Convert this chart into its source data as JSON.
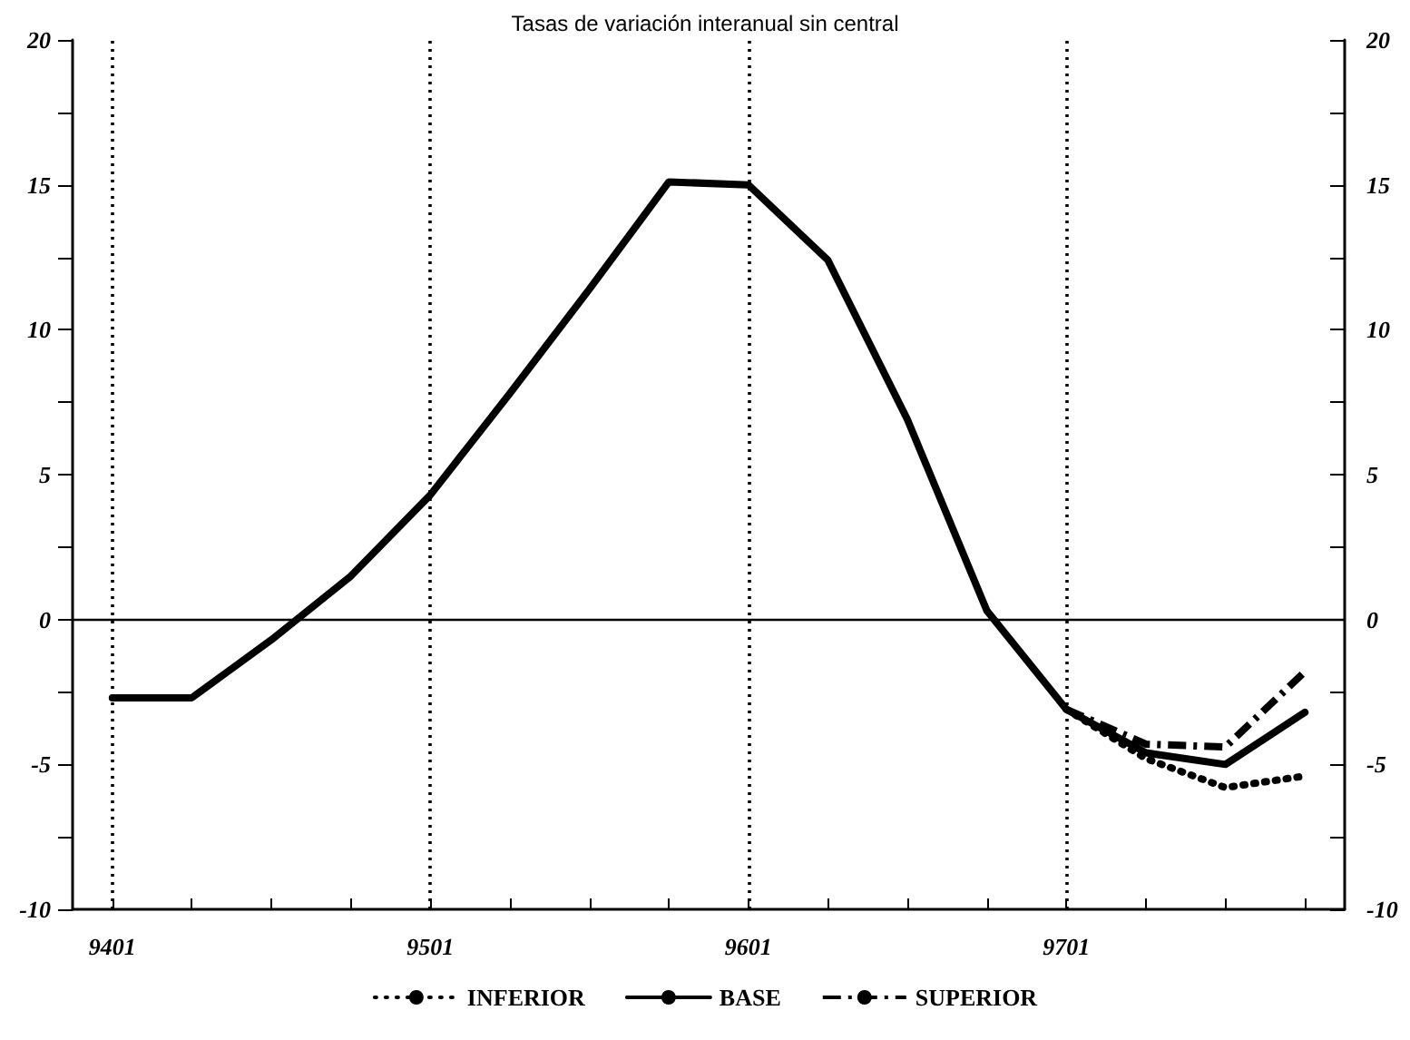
{
  "chart_data": {
    "type": "line",
    "title": "Tasas de variación interanual sin central",
    "categories": [
      "9401",
      null,
      null,
      null,
      "9501",
      null,
      null,
      null,
      "9601",
      null,
      null,
      null,
      "9701",
      null,
      null,
      null
    ],
    "series": [
      {
        "name": "INFERIOR",
        "color": "#000000",
        "line_style": "dotted",
        "values": [
          null,
          null,
          null,
          null,
          null,
          null,
          null,
          null,
          null,
          null,
          null,
          null,
          -3.1,
          -4.8,
          -5.8,
          -5.4
        ]
      },
      {
        "name": "BASE",
        "color": "#000000",
        "line_style": "solid",
        "values": [
          -2.7,
          -2.7,
          -0.7,
          1.5,
          4.3,
          7.8,
          11.4,
          15.1,
          15.0,
          12.4,
          6.9,
          0.3,
          -3.1,
          -4.6,
          -5.0,
          -3.2
        ]
      },
      {
        "name": "SUPERIOR",
        "color": "#000000",
        "line_style": "dashed",
        "values": [
          null,
          null,
          null,
          null,
          null,
          null,
          null,
          null,
          null,
          null,
          null,
          null,
          -3.1,
          -4.3,
          -4.4,
          -1.8
        ]
      }
    ],
    "ylim": [
      -10,
      20
    ],
    "yticks": [
      -10,
      {
        "value": -7.5,
        "label": null
      },
      -5,
      {
        "value": -2.5,
        "label": null
      },
      0,
      {
        "value": 2.5,
        "label": null
      },
      5,
      {
        "value": 7.5,
        "label": null
      },
      10,
      {
        "value": 12.5,
        "label": null
      },
      15,
      {
        "value": 17.5,
        "label": null
      },
      20
    ],
    "y2lim": [
      -10,
      20
    ],
    "y2ticks": [
      -10,
      {
        "value": -7.5,
        "label": null
      },
      -5,
      {
        "value": -2.5,
        "label": null
      },
      0,
      {
        "value": 2.5,
        "label": null
      },
      5,
      {
        "value": 7.5,
        "label": null
      },
      10,
      {
        "value": 12.5,
        "label": null
      },
      15,
      {
        "value": 17.5,
        "label": null
      },
      20
    ],
    "ref_lines": [
      {
        "axis": "y",
        "value": 0,
        "line_style": "solid"
      },
      {
        "axis": "x",
        "value": "9401",
        "line_style": "dotted"
      },
      {
        "axis": "x",
        "value": "9501",
        "line_style": "dotted"
      },
      {
        "axis": "x",
        "value": "9601",
        "line_style": "dotted"
      },
      {
        "axis": "x",
        "value": "9701",
        "line_style": "dotted"
      }
    ],
    "grid": false,
    "legend": "bottom",
    "marker": "none"
  }
}
